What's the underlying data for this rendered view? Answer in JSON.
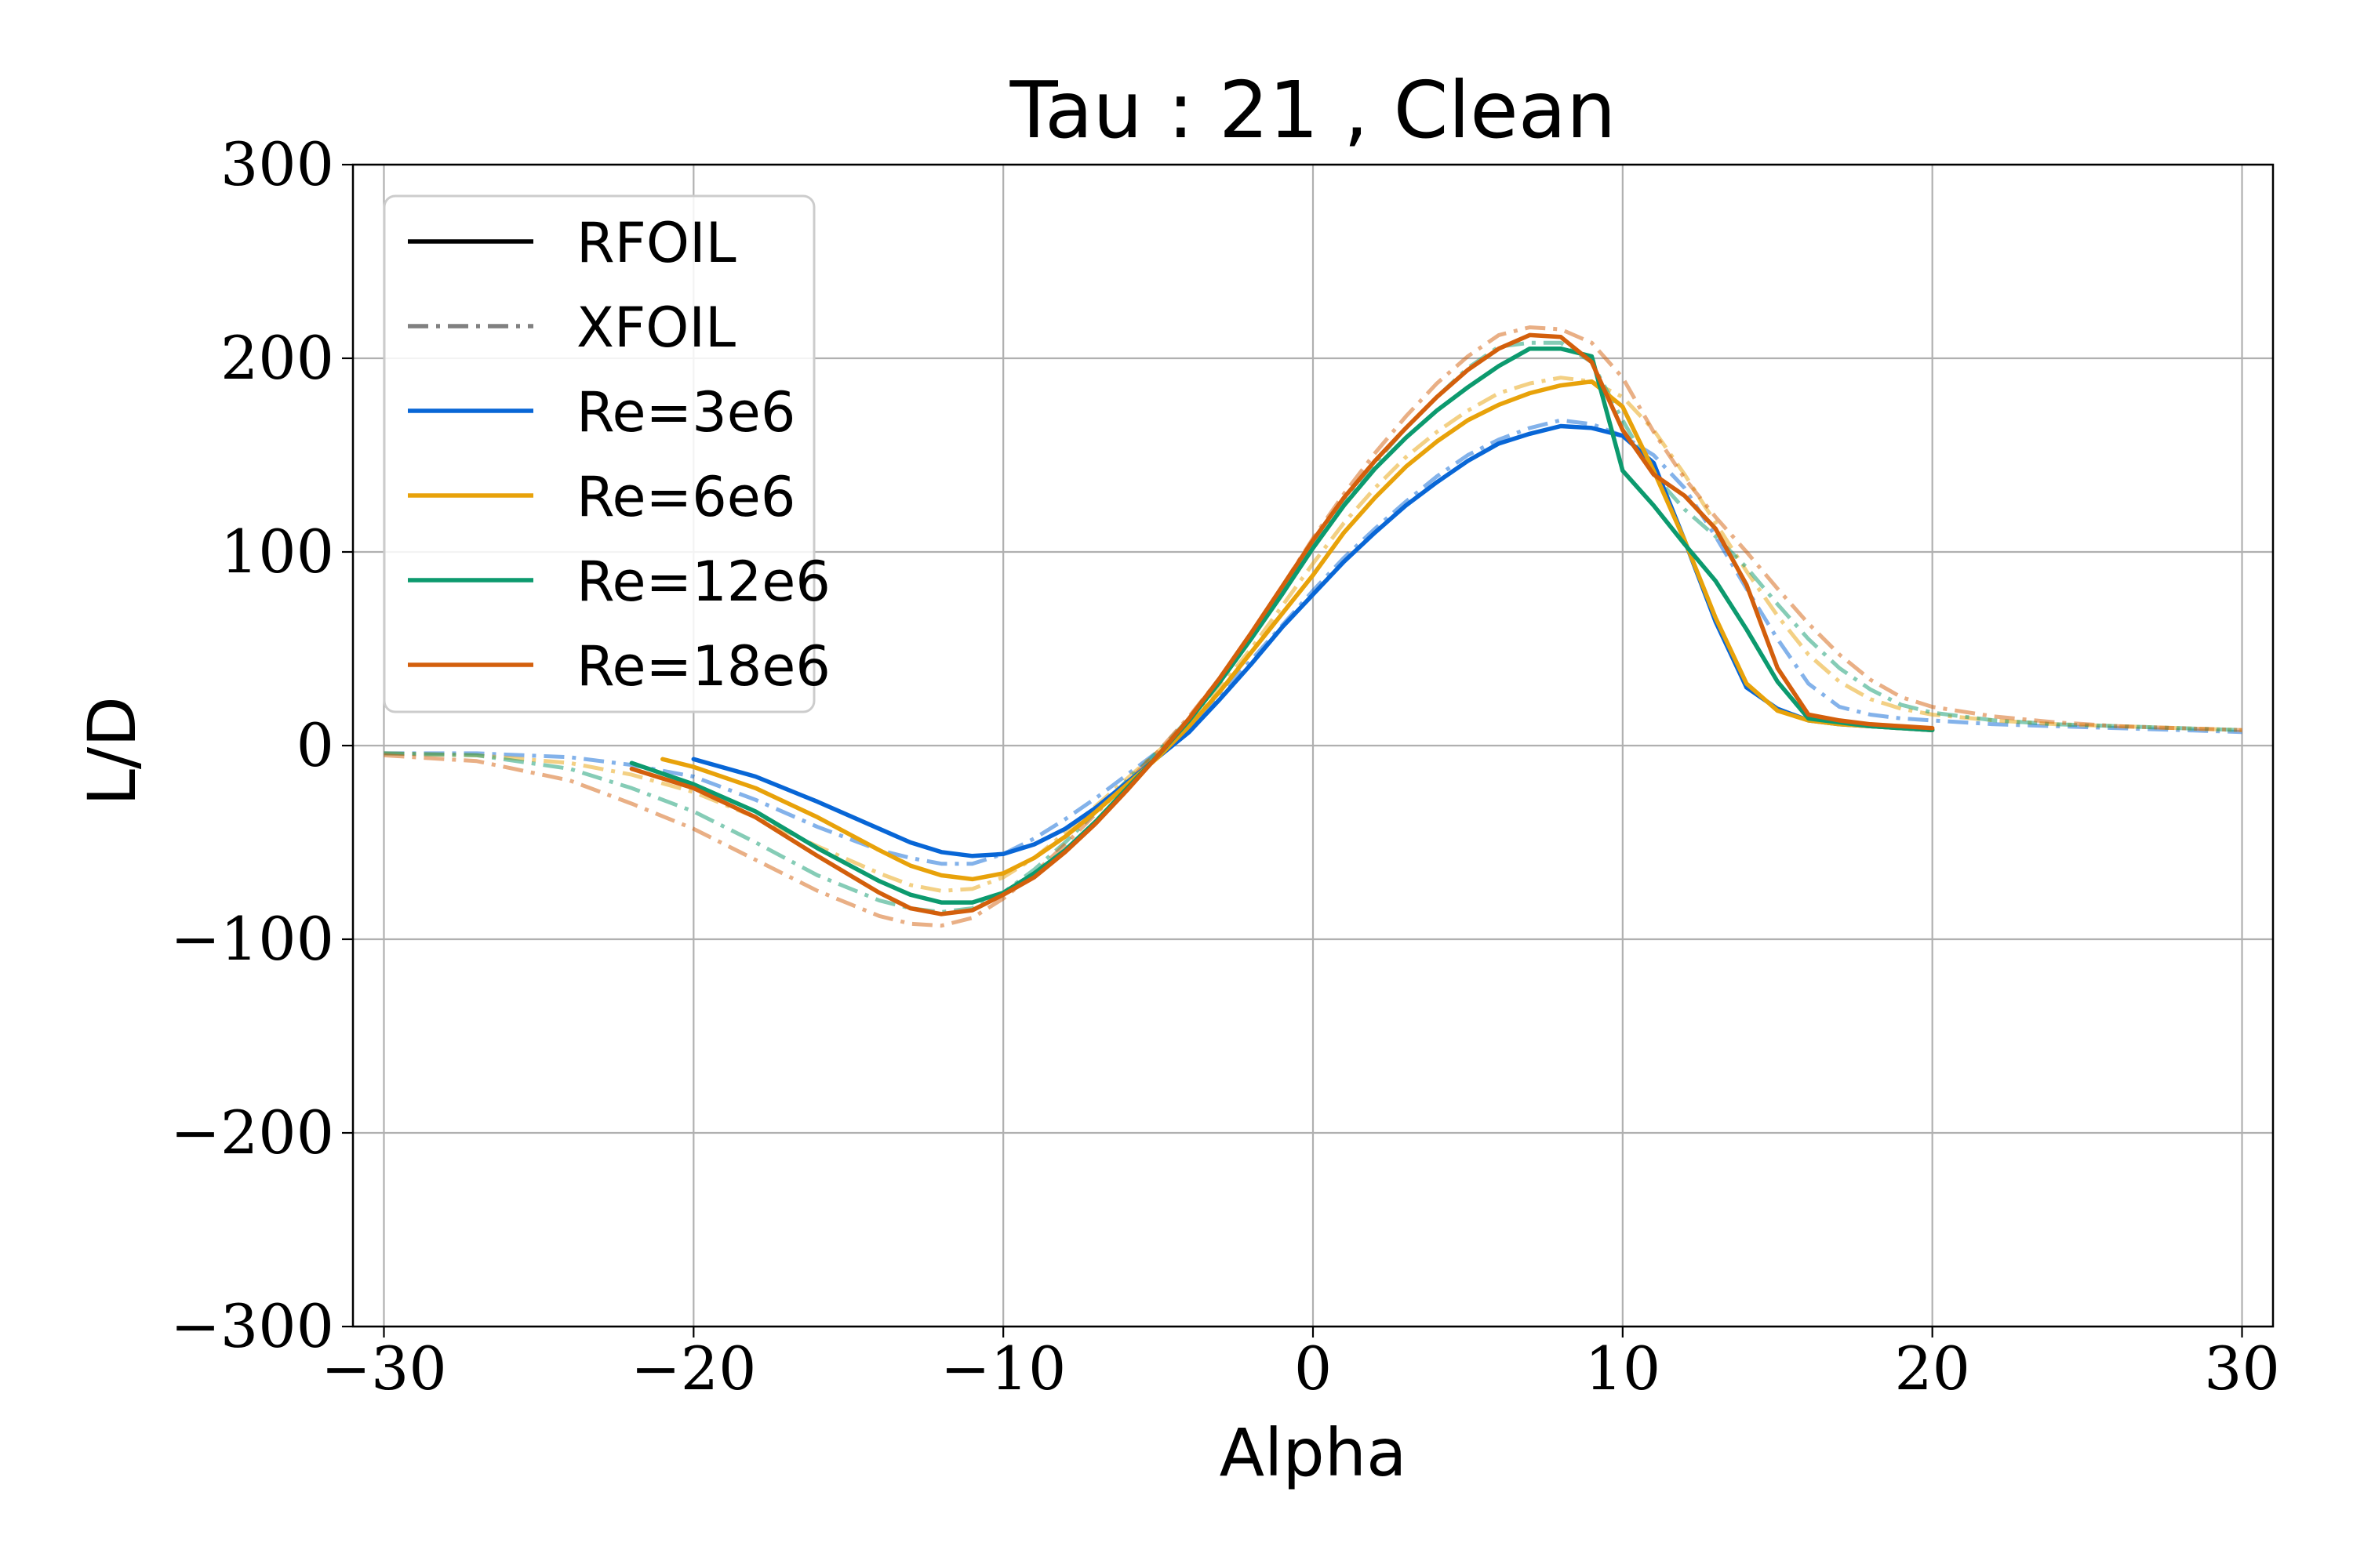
{
  "chart_data": {
    "type": "line",
    "title": "Tau : 21 , Clean",
    "xlabel": "Alpha",
    "ylabel": "L/D",
    "xlim": [
      -31,
      31
    ],
    "ylim": [
      -300,
      300
    ],
    "xticks": [
      -30,
      -20,
      -10,
      0,
      10,
      20,
      30
    ],
    "xtick_labels": [
      "−30",
      "−20",
      "−10",
      "0",
      "10",
      "20",
      "30"
    ],
    "yticks": [
      -300,
      -200,
      -100,
      0,
      100,
      200,
      300
    ],
    "ytick_labels": [
      "−300",
      "−200",
      "−100",
      "0",
      "100",
      "200",
      "300"
    ],
    "grid": true,
    "legend_placement": "top-left",
    "legend": [
      {
        "label": "RFOIL",
        "style": "solid",
        "color": "#000000"
      },
      {
        "label": "XFOIL",
        "style": "dashdot",
        "color": "#808080"
      },
      {
        "label": "Re=3e6",
        "style": "solid",
        "color": "#0866d6"
      },
      {
        "label": "Re=6e6",
        "style": "solid",
        "color": "#e8a20a"
      },
      {
        "label": "Re=12e6",
        "style": "solid",
        "color": "#0c9a6e"
      },
      {
        "label": "Re=18e6",
        "style": "solid",
        "color": "#d35f0c"
      }
    ],
    "series": [
      {
        "solver": "XFOIL",
        "re": "Re=3e6",
        "color": "#0866d6",
        "style": "dashdot",
        "x": [
          -30,
          -27,
          -24,
          -22,
          -20,
          -18,
          -16,
          -14,
          -13,
          -12,
          -11,
          -10,
          -9,
          -8,
          -7,
          -6,
          -5,
          -4,
          -3,
          -2,
          -1,
          0,
          1,
          2,
          3,
          4,
          5,
          6,
          7,
          8,
          9,
          10,
          11,
          12,
          13,
          14,
          15,
          16,
          17,
          18,
          19,
          20,
          22,
          24,
          26,
          28,
          30
        ],
        "y": [
          -4,
          -4,
          -6,
          -10,
          -16,
          -28,
          -42,
          -54,
          -58,
          -61,
          -61,
          -56,
          -48,
          -38,
          -27,
          -15,
          -3,
          10,
          27,
          44,
          62,
          80,
          97,
          112,
          126,
          139,
          150,
          158,
          164,
          168,
          166,
          160,
          150,
          133,
          108,
          81,
          55,
          32,
          20,
          16,
          14,
          13,
          11,
          10,
          9,
          8,
          7
        ]
      },
      {
        "solver": "XFOIL",
        "re": "Re=6e6",
        "color": "#e8a20a",
        "style": "dashdot",
        "x": [
          -30,
          -27,
          -24,
          -22,
          -20,
          -18,
          -16,
          -14,
          -13,
          -12,
          -11,
          -10,
          -9,
          -8,
          -7,
          -6,
          -5,
          -4,
          -3,
          -2,
          -1,
          0,
          1,
          2,
          3,
          4,
          5,
          6,
          7,
          8,
          9,
          10,
          11,
          12,
          13,
          14,
          15,
          16,
          17,
          18,
          19,
          20,
          22,
          24,
          26,
          28,
          30
        ],
        "y": [
          -4,
          -5,
          -9,
          -15,
          -24,
          -37,
          -52,
          -66,
          -72,
          -75,
          -74,
          -68,
          -58,
          -45,
          -31,
          -17,
          -3,
          12,
          30,
          50,
          72,
          94,
          115,
          133,
          149,
          162,
          173,
          182,
          187,
          190,
          188,
          180,
          163,
          140,
          115,
          90,
          67,
          47,
          33,
          24,
          19,
          16,
          13,
          11,
          10,
          9,
          8
        ]
      },
      {
        "solver": "XFOIL",
        "re": "Re=12e6",
        "color": "#0c9a6e",
        "style": "dashdot",
        "x": [
          -30,
          -27,
          -24,
          -22,
          -20,
          -18,
          -16,
          -14,
          -13,
          -12,
          -11,
          -10,
          -9,
          -8,
          -7,
          -6,
          -5,
          -4,
          -3,
          -2,
          -1,
          0,
          1,
          2,
          3,
          4,
          5,
          6,
          7,
          8,
          9,
          10,
          11,
          12,
          13,
          14,
          15,
          16,
          17,
          18,
          19,
          20,
          22,
          24,
          26,
          28,
          30
        ],
        "y": [
          -4,
          -5,
          -12,
          -22,
          -34,
          -50,
          -67,
          -80,
          -84,
          -86,
          -84,
          -76,
          -64,
          -50,
          -34,
          -18,
          -3,
          14,
          34,
          56,
          80,
          104,
          126,
          146,
          164,
          180,
          195,
          206,
          208,
          208,
          198,
          168,
          140,
          122,
          108,
          92,
          73,
          55,
          40,
          29,
          21,
          17,
          13,
          11,
          10,
          9,
          8
        ]
      },
      {
        "solver": "XFOIL",
        "re": "Re=18e6",
        "color": "#d35f0c",
        "style": "dashdot",
        "x": [
          -30,
          -27,
          -24,
          -22,
          -20,
          -18,
          -16,
          -14,
          -13,
          -12,
          -11,
          -10,
          -9,
          -8,
          -7,
          -6,
          -5,
          -4,
          -3,
          -2,
          -1,
          0,
          1,
          2,
          3,
          4,
          5,
          6,
          7,
          8,
          9,
          10,
          11,
          12,
          13,
          14,
          15,
          16,
          17,
          18,
          19,
          20,
          22,
          24,
          26,
          28,
          30
        ],
        "y": [
          -5,
          -8,
          -18,
          -30,
          -43,
          -59,
          -75,
          -88,
          -92,
          -93,
          -89,
          -79,
          -66,
          -51,
          -35,
          -19,
          -3,
          15,
          35,
          58,
          82,
          107,
          130,
          151,
          170,
          187,
          201,
          212,
          216,
          215,
          208,
          190,
          162,
          138,
          118,
          100,
          81,
          63,
          47,
          34,
          25,
          20,
          15,
          12,
          10,
          9,
          8
        ]
      },
      {
        "solver": "RFOIL",
        "re": "Re=3e6",
        "color": "#0866d6",
        "style": "solid",
        "x": [
          -20,
          -18,
          -16,
          -14,
          -13,
          -12,
          -11,
          -10,
          -9,
          -8,
          -7,
          -6,
          -5,
          -4,
          -3,
          -2,
          -1,
          0,
          1,
          2,
          3,
          4,
          5,
          6,
          7,
          8,
          9,
          10,
          11,
          12,
          13,
          14,
          15,
          16,
          17,
          18,
          19,
          20
        ],
        "y": [
          -7,
          -16,
          -29,
          -43,
          -50,
          -55,
          -57,
          -56,
          -51,
          -43,
          -32,
          -19,
          -6,
          7,
          24,
          42,
          61,
          78,
          95,
          110,
          124,
          136,
          147,
          156,
          161,
          165,
          164,
          160,
          146,
          106,
          64,
          30,
          19,
          13,
          11,
          10,
          9,
          8
        ]
      },
      {
        "solver": "RFOIL",
        "re": "Re=6e6",
        "color": "#e8a20a",
        "style": "solid",
        "x": [
          -21,
          -20,
          -18,
          -16,
          -14,
          -13,
          -12,
          -11,
          -10,
          -9,
          -8,
          -7,
          -6,
          -5,
          -4,
          -3,
          -2,
          -1,
          0,
          1,
          2,
          3,
          4,
          5,
          6,
          7,
          8,
          9,
          10,
          11,
          12,
          13,
          14,
          15,
          16,
          17,
          18,
          19,
          20
        ],
        "y": [
          -7,
          -11,
          -22,
          -37,
          -54,
          -62,
          -67,
          -69,
          -66,
          -58,
          -47,
          -34,
          -20,
          -6,
          10,
          28,
          48,
          68,
          88,
          110,
          128,
          144,
          157,
          168,
          176,
          182,
          186,
          188,
          175,
          142,
          106,
          66,
          32,
          18,
          13,
          11,
          10,
          9,
          8
        ]
      },
      {
        "solver": "RFOIL",
        "re": "Re=12e6",
        "color": "#0c9a6e",
        "style": "solid",
        "x": [
          -22,
          -20,
          -18,
          -16,
          -14,
          -13,
          -12,
          -11,
          -10,
          -9,
          -8,
          -7,
          -6,
          -5,
          -4,
          -3,
          -2,
          -1,
          0,
          1,
          2,
          3,
          4,
          5,
          6,
          7,
          8,
          9,
          10,
          11,
          12,
          13,
          14,
          15,
          16,
          17,
          18,
          19,
          20
        ],
        "y": [
          -9,
          -20,
          -34,
          -53,
          -70,
          -77,
          -81,
          -81,
          -76,
          -66,
          -54,
          -39,
          -22,
          -5,
          13,
          33,
          55,
          78,
          102,
          124,
          143,
          159,
          173,
          185,
          196,
          205,
          205,
          201,
          142,
          124,
          104,
          85,
          60,
          33,
          14,
          12,
          10,
          9,
          8
        ]
      },
      {
        "solver": "RFOIL",
        "re": "Re=18e6",
        "color": "#d35f0c",
        "style": "solid",
        "x": [
          -22,
          -20,
          -18,
          -16,
          -14,
          -13,
          -12,
          -11,
          -10,
          -9,
          -8,
          -7,
          -6,
          -5,
          -4,
          -3,
          -2,
          -1,
          0,
          1,
          2,
          3,
          4,
          5,
          6,
          7,
          8,
          9,
          10,
          11,
          12,
          13,
          14,
          15,
          16,
          17,
          18,
          19,
          20
        ],
        "y": [
          -12,
          -22,
          -37,
          -57,
          -76,
          -84,
          -87,
          -85,
          -77,
          -68,
          -55,
          -40,
          -23,
          -5,
          14,
          35,
          58,
          82,
          106,
          128,
          147,
          164,
          180,
          194,
          205,
          212,
          211,
          198,
          163,
          140,
          129,
          112,
          83,
          40,
          16,
          13,
          11,
          10,
          9
        ]
      }
    ]
  }
}
